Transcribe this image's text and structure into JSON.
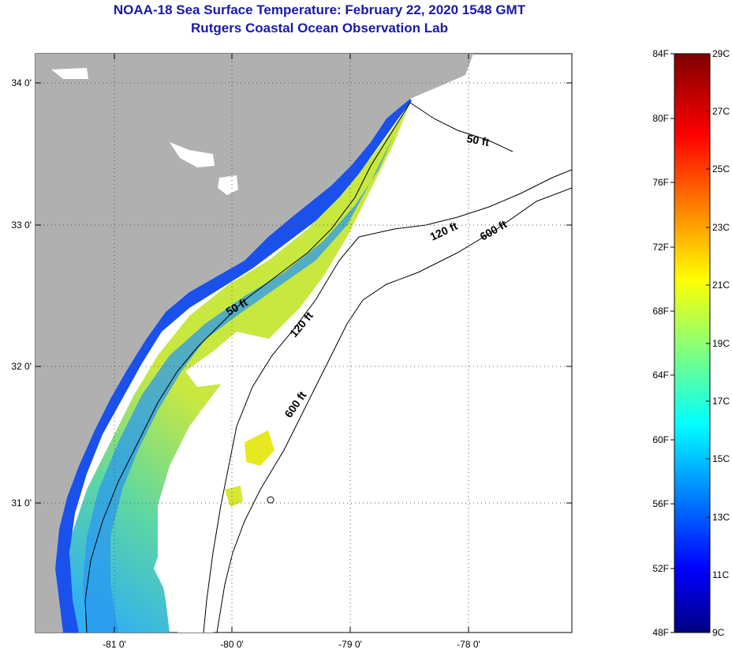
{
  "header": {
    "title": "NOAA-18 Sea Surface Temperature:  February 22, 2020 1548 GMT",
    "subtitle": "Rutgers Coastal Ocean Observation Lab"
  },
  "map": {
    "lat_labels": [
      "34 0'",
      "33 0'",
      "32 0'",
      "31 0'"
    ],
    "lon_labels": [
      "-81 0'",
      "-80 0'",
      "-79 0'",
      "-78 0'"
    ],
    "contour_labels": [
      "50 ft",
      "50 ft",
      "120 ft",
      "120 ft",
      "600 ft",
      "600 ft"
    ],
    "colors": {
      "land": "#b0b0b0",
      "ocean": "#ffffff",
      "cloud": "#ffffff"
    }
  },
  "colorbar": {
    "fahrenheit_labels": [
      "84F",
      "80F",
      "76F",
      "72F",
      "68F",
      "64F",
      "60F",
      "56F",
      "52F",
      "48F"
    ],
    "celsius_labels": [
      "29C",
      "27C",
      "25C",
      "23C",
      "21C",
      "19C",
      "17C",
      "15C",
      "13C",
      "11C",
      "9C"
    ]
  }
}
